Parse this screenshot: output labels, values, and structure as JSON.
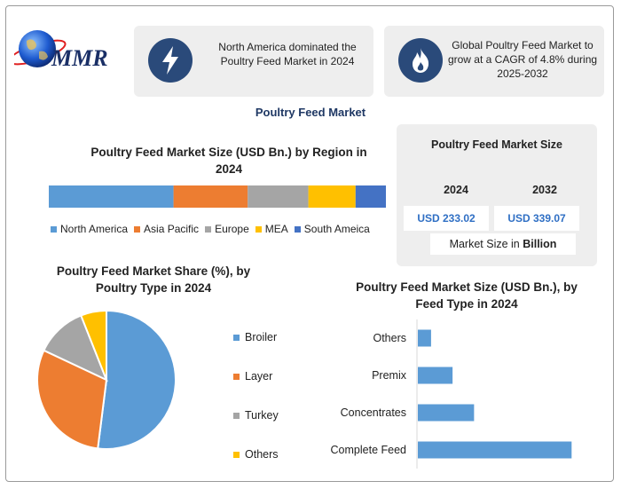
{
  "brand": {
    "logo_text": "MMR"
  },
  "highlights": [
    {
      "icon": "lightning-bolt-icon",
      "text": "North America dominated the Poultry Feed Market in 2024"
    },
    {
      "icon": "flame-icon",
      "text": "Global Poultry Feed Market to grow at a CAGR of 4.8% during 2025-2032"
    }
  ],
  "main_title": "Poultry Feed Market",
  "market_size": {
    "title": "Poultry Feed Market Size",
    "years": [
      "2024",
      "2032"
    ],
    "values": [
      "USD 233.02",
      "USD 339.07"
    ],
    "note_prefix": "Market Size in ",
    "note_bold": "Billion"
  },
  "colors": {
    "blue": "#5b9bd5",
    "orange": "#ed7d31",
    "gray": "#a5a5a5",
    "yellow": "#ffc000",
    "darkblue": "#4472c4",
    "navy": "#2a4a7a"
  },
  "chart_data": [
    {
      "type": "bar",
      "orientation": "horizontal-stacked",
      "title": "Poultry Feed Market Size (USD Bn.) by Region in 2024",
      "legend_position": "bottom",
      "series": [
        {
          "name": "North America",
          "value": 37,
          "color": "#5b9bd5"
        },
        {
          "name": "Asia Pacific",
          "value": 22,
          "color": "#ed7d31"
        },
        {
          "name": "Europe",
          "value": 18,
          "color": "#a5a5a5"
        },
        {
          "name": "MEA",
          "value": 14,
          "color": "#ffc000"
        },
        {
          "name": "South Ameica",
          "value": 9,
          "color": "#4472c4"
        }
      ]
    },
    {
      "type": "pie",
      "title": "Poultry Feed Market Share (%), by Poultry Type in 2024",
      "legend_position": "right",
      "slices": [
        {
          "name": "Broiler",
          "value": 52,
          "color": "#5b9bd5"
        },
        {
          "name": "Layer",
          "value": 30,
          "color": "#ed7d31"
        },
        {
          "name": "Turkey",
          "value": 12,
          "color": "#a5a5a5"
        },
        {
          "name": "Others",
          "value": 6,
          "color": "#ffc000"
        }
      ]
    },
    {
      "type": "bar",
      "orientation": "horizontal",
      "title": "Poultry Feed Market Size (USD Bn.), by Feed Type in 2024",
      "categories": [
        "Others",
        "Premix",
        "Concentrates",
        "Complete Feed"
      ],
      "values": [
        8,
        21,
        34,
        93
      ],
      "color": "#5b9bd5",
      "xlim": [
        0,
        110
      ],
      "grid": false
    }
  ]
}
